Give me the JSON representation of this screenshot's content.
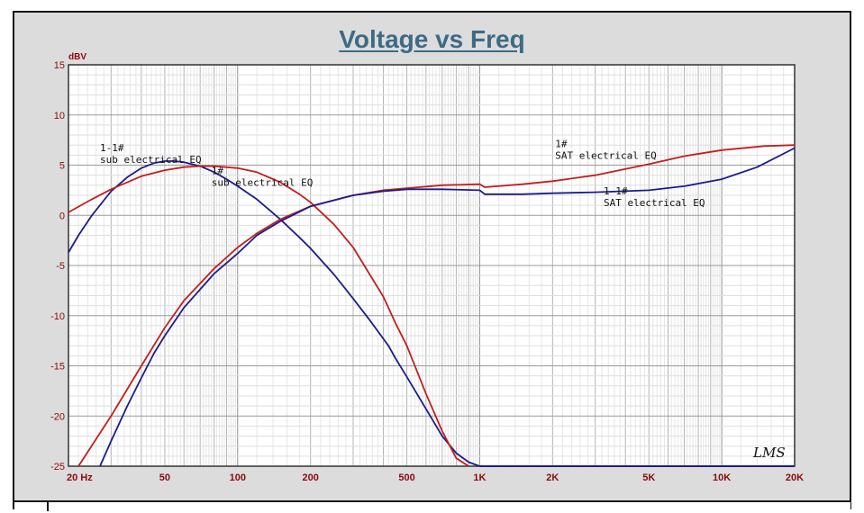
{
  "chart_data": {
    "type": "line",
    "title": "Voltage vs Freq",
    "ylabel": "dBV",
    "xscale": "log",
    "xlim": [
      20,
      20000
    ],
    "ylim": [
      -25,
      15
    ],
    "grid": true,
    "y_ticks": [
      15,
      10,
      5,
      0,
      -5,
      -10,
      -15,
      -20,
      -25
    ],
    "y_tick_labels": [
      "15",
      "10",
      "5",
      "0",
      "-5",
      "-10",
      "-15",
      "-20",
      "-25"
    ],
    "x_ticks": [
      20,
      50,
      100,
      200,
      500,
      1000,
      2000,
      5000,
      10000,
      20000
    ],
    "x_tick_labels": [
      "20 Hz",
      "50",
      "100",
      "200",
      "500",
      "1K",
      "2K",
      "5K",
      "10K",
      "20K"
    ],
    "series": [
      {
        "name": "1-1# sub electrical EQ",
        "color": "#1c1c8c",
        "x": [
          20,
          22,
          25,
          30,
          35,
          40,
          45,
          50,
          55,
          60,
          70,
          80,
          90,
          100,
          120,
          150,
          180,
          200,
          250,
          300,
          350,
          400,
          420,
          450,
          500,
          600,
          700,
          800,
          900,
          1000
        ],
        "y": [
          -3.7,
          -2.0,
          0,
          2.4,
          3.8,
          4.7,
          5.2,
          5.4,
          5.4,
          5.3,
          4.9,
          4.3,
          3.6,
          2.9,
          1.6,
          -0.4,
          -2.2,
          -3.3,
          -5.9,
          -8.3,
          -10.4,
          -12.3,
          -13.0,
          -14.3,
          -16.1,
          -19.3,
          -22.0,
          -23.7,
          -24.6,
          -25
        ]
      },
      {
        "name": "1# sub electrical EQ",
        "color": "#c0201c",
        "x": [
          20,
          25,
          30,
          40,
          50,
          60,
          70,
          80,
          100,
          120,
          150,
          180,
          200,
          250,
          300,
          400,
          450,
          500,
          600,
          700,
          800,
          900
        ],
        "y": [
          0.3,
          1.6,
          2.6,
          3.9,
          4.5,
          4.8,
          4.9,
          4.9,
          4.7,
          4.3,
          3.3,
          2.1,
          1.3,
          -0.9,
          -3.2,
          -8.1,
          -10.8,
          -13.0,
          -17.8,
          -21.5,
          -24.2,
          -25
        ]
      },
      {
        "name": "1# SAT electrical EQ",
        "color": "#c0201c",
        "x": [
          22,
          30,
          40,
          50,
          60,
          80,
          100,
          120,
          150,
          200,
          300,
          400,
          500,
          700,
          1000,
          1050,
          1500,
          2000,
          3000,
          5000,
          7000,
          10000,
          15000,
          20000
        ],
        "y": [
          -25,
          -20,
          -15,
          -11.2,
          -8.5,
          -5.3,
          -3.2,
          -1.8,
          -0.4,
          0.9,
          2.0,
          2.5,
          2.7,
          3.0,
          3.1,
          2.8,
          3.1,
          3.4,
          4.0,
          5.1,
          5.9,
          6.5,
          6.9,
          7.0
        ]
      },
      {
        "name": "1-1# SAT electrical EQ",
        "color": "#1c1c8c",
        "x": [
          27,
          30,
          35,
          40,
          45,
          50,
          60,
          80,
          100,
          120,
          150,
          200,
          300,
          400,
          500,
          700,
          1000,
          1050,
          1500,
          2000,
          3000,
          5000,
          7000,
          10000,
          14000,
          20000
        ],
        "y": [
          -25,
          -22.5,
          -19.0,
          -16.2,
          -13.8,
          -12.0,
          -9.2,
          -5.8,
          -3.8,
          -2.0,
          -0.6,
          0.9,
          2.0,
          2.4,
          2.6,
          2.6,
          2.5,
          2.1,
          2.1,
          2.2,
          2.3,
          2.5,
          2.9,
          3.6,
          4.8,
          6.7
        ]
      }
    ],
    "annotations": [
      {
        "line1": "1-1#",
        "line2": "sub electrical EQ",
        "freq": 20,
        "db": 6.4
      },
      {
        "line1": "1#",
        "line2": "sub electrical EQ",
        "freq": 78,
        "db": 4.1
      },
      {
        "line1": "1#",
        "line2": "SAT electrical EQ",
        "freq": 2050,
        "db": 6.8
      },
      {
        "line1": "1-1#",
        "line2": "SAT electrical EQ",
        "freq": 3250,
        "db": 2.1
      }
    ],
    "signature": "LMS"
  }
}
